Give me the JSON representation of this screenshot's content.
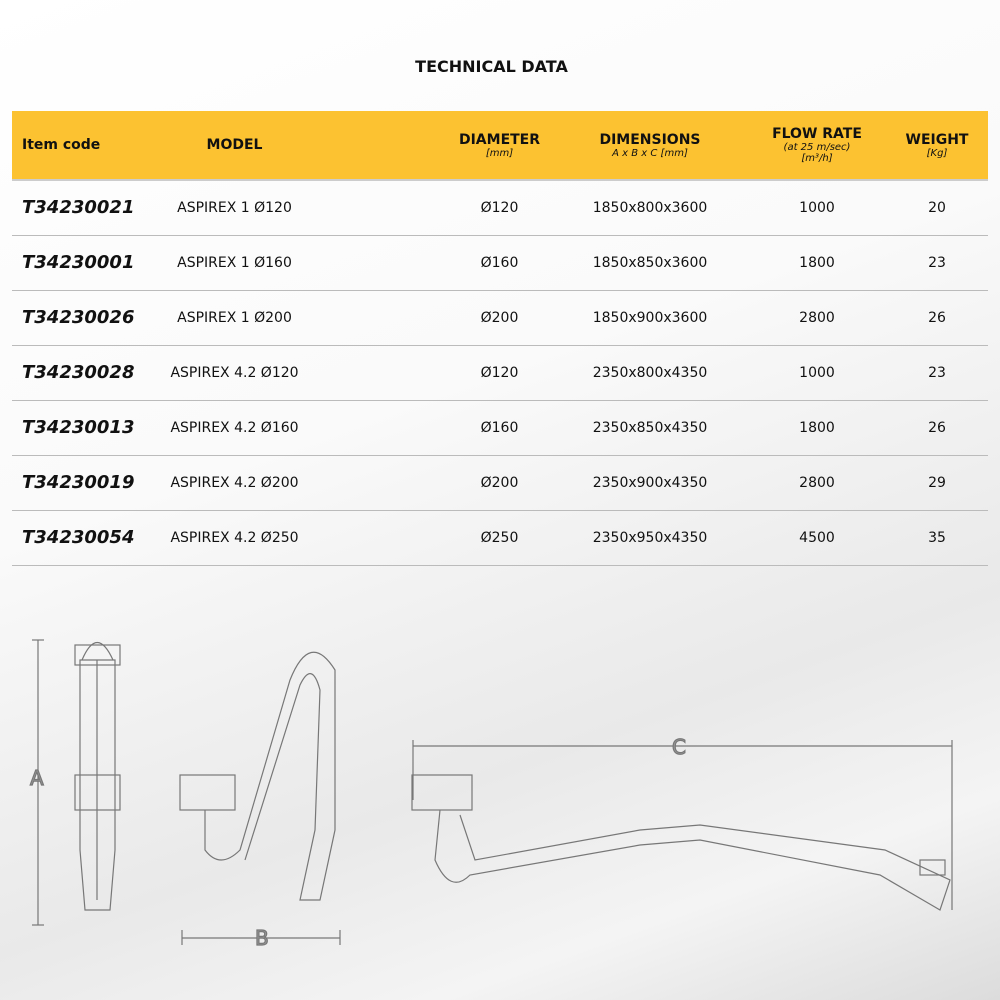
{
  "title": "TECHNICAL DATA",
  "header": {
    "item_code": "Item code",
    "model": "MODEL",
    "diameter": "DIAMETER",
    "diameter_unit": "[mm]",
    "dimensions": "DIMENSIONS",
    "dimensions_unit": "A x B x C [mm]",
    "flow_rate": "FLOW RATE",
    "flow_rate_note": "(at 25 m/sec)",
    "flow_rate_unit": "[m³/h]",
    "weight": "WEIGHT",
    "weight_unit": "[Kg]"
  },
  "rows": [
    {
      "code": "T34230021",
      "model": "ASPIREX 1 Ø120",
      "diameter": "Ø120",
      "dimensions": "1850x800x3600",
      "flow": "1000",
      "weight": "20"
    },
    {
      "code": "T34230001",
      "model": "ASPIREX 1 Ø160",
      "diameter": "Ø160",
      "dimensions": "1850x850x3600",
      "flow": "1800",
      "weight": "23"
    },
    {
      "code": "T34230026",
      "model": "ASPIREX 1 Ø200",
      "diameter": "Ø200",
      "dimensions": "1850x900x3600",
      "flow": "2800",
      "weight": "26"
    },
    {
      "code": "T34230028",
      "model": "ASPIREX 4.2 Ø120",
      "diameter": "Ø120",
      "dimensions": "2350x800x4350",
      "flow": "1000",
      "weight": "23"
    },
    {
      "code": "T34230013",
      "model": "ASPIREX 4.2 Ø160",
      "diameter": "Ø160",
      "dimensions": "2350x850x4350",
      "flow": "1800",
      "weight": "26"
    },
    {
      "code": "T34230019",
      "model": "ASPIREX 4.2 Ø200",
      "diameter": "Ø200",
      "dimensions": "2350x900x4350",
      "flow": "2800",
      "weight": "29"
    },
    {
      "code": "T34230054",
      "model": "ASPIREX 4.2 Ø250",
      "diameter": "Ø250",
      "dimensions": "2350x950x4350",
      "flow": "4500",
      "weight": "35"
    }
  ],
  "drawing_labels": {
    "a": "A",
    "b": "B",
    "c": "C"
  },
  "colors": {
    "header": "#fcc231"
  }
}
